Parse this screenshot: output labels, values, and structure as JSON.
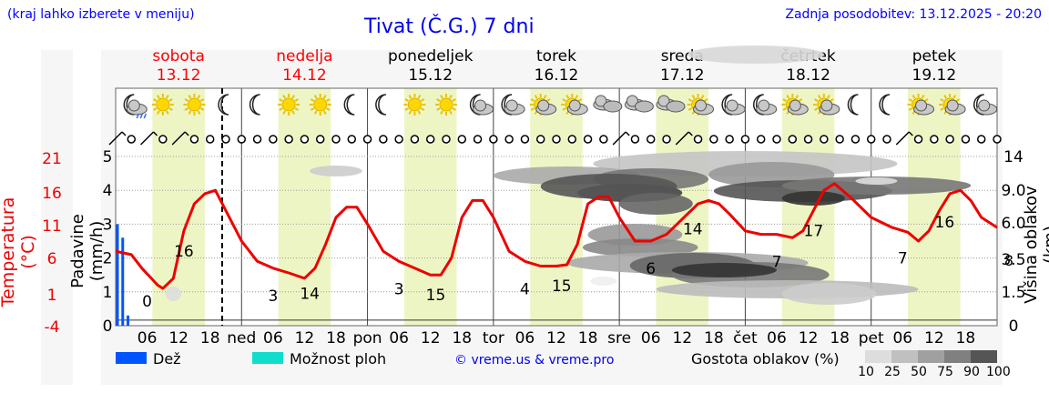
{
  "header": {
    "left_note": "(kraj lahko izberete v meniju)",
    "title": "Tivat (Č.G.) 7 dni",
    "updated": "Zadnja posodobitev: 13.12.2025 - 20:20"
  },
  "days": [
    {
      "name": "sobota",
      "date": "13.12",
      "weekend": true
    },
    {
      "name": "nedelja",
      "date": "14.12",
      "weekend": true
    },
    {
      "name": "ponedeljek",
      "date": "15.12",
      "weekend": false
    },
    {
      "name": "torek",
      "date": "16.12",
      "weekend": false
    },
    {
      "name": "sreda",
      "date": "17.12",
      "weekend": false
    },
    {
      "name": "četrtek",
      "date": "18.12",
      "weekend": false
    },
    {
      "name": "petek",
      "date": "19.12",
      "weekend": false
    }
  ],
  "colors": {
    "temperature": "#ee0000",
    "rain": "#0055ff",
    "storm": "#00dddd",
    "daylight": "#eef5c5",
    "weekend": "#ff0000",
    "grid": "#999999"
  },
  "icons": [
    "moon-cloud-rain-icon",
    "sun-icon",
    "sun-icon",
    "moon-icon",
    "moon-icon",
    "sun-icon",
    "sun-icon",
    "moon-icon",
    "moon-icon",
    "sun-icon",
    "sun-icon",
    "moon-cloud-icon",
    "moon-cloud-icon",
    "sun-cloud-icon",
    "sun-cloud-icon",
    "clouds-icon",
    "clouds-icon",
    "clouds-icon",
    "sun-cloud-icon",
    "moon-cloud-icon",
    "moon-cloud-icon",
    "sun-cloud-icon",
    "sun-cloud-icon",
    "moon-icon",
    "moon-icon",
    "sun-cloud-icon",
    "sun-cloud-icon",
    "moon-cloud-icon"
  ],
  "chart_data": {
    "type": "line",
    "title": "Tivat (Č.G.) 7 dni",
    "x_unit": "hours from 13.12 00:00",
    "x_range": [
      0,
      168
    ],
    "x_tick_labels": [
      "06",
      "12",
      "18",
      "ned",
      "06",
      "12",
      "18",
      "pon",
      "06",
      "12",
      "18",
      "tor",
      "06",
      "12",
      "18",
      "sre",
      "06",
      "12",
      "18",
      "čet",
      "06",
      "12",
      "18",
      "pet",
      "06",
      "12",
      "18"
    ],
    "left_axis_temperature": {
      "label": "Temperatura (°C)",
      "ticks": [
        "21",
        "16",
        "11",
        "6",
        "1",
        "-4"
      ],
      "range": [
        -4,
        21
      ]
    },
    "left_axis_precip": {
      "label": "Padavine (mm/h)",
      "ticks": [
        "5",
        "4",
        "3",
        "2",
        "1",
        "0"
      ],
      "range": [
        0,
        5
      ]
    },
    "right_axis_cloud_height": {
      "label": "Višina oblakov (km)",
      "ticks": [
        "14",
        "9.0",
        "6.0",
        "3.5",
        "1.5",
        "0"
      ]
    },
    "temperature_series": {
      "name": "Temperatura",
      "points": [
        [
          0,
          7.0
        ],
        [
          3,
          6.5
        ],
        [
          5,
          4.5
        ],
        [
          8,
          2
        ],
        [
          9,
          1.5
        ],
        [
          11,
          3
        ],
        [
          13,
          10
        ],
        [
          15,
          14
        ],
        [
          17,
          15.5
        ],
        [
          19,
          16
        ],
        [
          21,
          13
        ],
        [
          24,
          8.5
        ],
        [
          27,
          5.5
        ],
        [
          30,
          4.5
        ],
        [
          33,
          3.8
        ],
        [
          36,
          3
        ],
        [
          38,
          4.5
        ],
        [
          40,
          8
        ],
        [
          42,
          12
        ],
        [
          44,
          13.5
        ],
        [
          46,
          13.5
        ],
        [
          48,
          11
        ],
        [
          51,
          7
        ],
        [
          54,
          5.5
        ],
        [
          57,
          4.5
        ],
        [
          60,
          3.5
        ],
        [
          62,
          3.5
        ],
        [
          64,
          6
        ],
        [
          66,
          12
        ],
        [
          68,
          14.5
        ],
        [
          70,
          14.5
        ],
        [
          72,
          12
        ],
        [
          75,
          7
        ],
        [
          78,
          5.5
        ],
        [
          81,
          4.8
        ],
        [
          84,
          4.8
        ],
        [
          86,
          5
        ],
        [
          88,
          8
        ],
        [
          90,
          14
        ],
        [
          92,
          15
        ],
        [
          94,
          15
        ],
        [
          96,
          12
        ],
        [
          99,
          8.5
        ],
        [
          102,
          8.5
        ],
        [
          105,
          9.5
        ],
        [
          107,
          11
        ],
        [
          109,
          12.5
        ],
        [
          111,
          14
        ],
        [
          113,
          14.5
        ],
        [
          115,
          14
        ],
        [
          117,
          12.5
        ],
        [
          120,
          10
        ],
        [
          123,
          9.5
        ],
        [
          126,
          9.5
        ],
        [
          129,
          9
        ],
        [
          131,
          10
        ],
        [
          133,
          13
        ],
        [
          135,
          16
        ],
        [
          137,
          17
        ],
        [
          140,
          15
        ],
        [
          144,
          12
        ],
        [
          148,
          10.5
        ],
        [
          151,
          9.8
        ],
        [
          153,
          8.5
        ],
        [
          155,
          10
        ],
        [
          157,
          13
        ],
        [
          159,
          15.5
        ],
        [
          161,
          16
        ],
        [
          163,
          14.5
        ],
        [
          165,
          12
        ],
        [
          168,
          10.5
        ]
      ],
      "labels": [
        {
          "x": 6,
          "value": "0"
        },
        {
          "x": 13,
          "value": "16"
        },
        {
          "x": 30,
          "value": "3"
        },
        {
          "x": 37,
          "value": "14"
        },
        {
          "x": 54,
          "value": "3"
        },
        {
          "x": 61,
          "value": "15"
        },
        {
          "x": 78,
          "value": "4"
        },
        {
          "x": 85,
          "value": "15"
        },
        {
          "x": 102,
          "value": "6"
        },
        {
          "x": 110,
          "value": "14"
        },
        {
          "x": 126,
          "value": "7"
        },
        {
          "x": 133,
          "value": "17"
        },
        {
          "x": 150,
          "value": "7"
        },
        {
          "x": 158,
          "value": "16"
        }
      ]
    },
    "precipitation": {
      "name": "Dež",
      "x": [
        0,
        1,
        2
      ],
      "values": [
        3.0,
        2.6,
        0.3
      ]
    },
    "cloud_density": {
      "name": "Gostota oblakov (%)",
      "levels": [
        10,
        25,
        50,
        75,
        90,
        100
      ]
    },
    "legend": [
      {
        "name": "Dež",
        "color": "#0055ff"
      },
      {
        "name": "Možnost ploh",
        "color": "#11ddcc"
      }
    ],
    "copyright": "© vreme.us & vreme.pro",
    "current_time_hour": 20.3
  }
}
